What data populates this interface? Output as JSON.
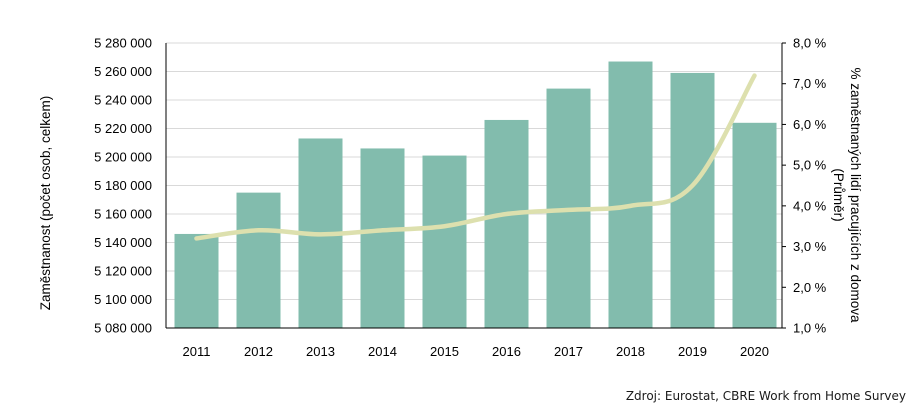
{
  "chart_data": {
    "type": "bar",
    "categories": [
      "2011",
      "2012",
      "2013",
      "2014",
      "2015",
      "2016",
      "2017",
      "2018",
      "2019",
      "2020"
    ],
    "series": [
      {
        "type": "bar",
        "axis": "left",
        "values": [
          5146000,
          5175000,
          5213000,
          5206000,
          5201000,
          5226000,
          5248000,
          5267000,
          5259000,
          5224000
        ],
        "color": "#82bcad"
      },
      {
        "type": "line",
        "axis": "right",
        "values": [
          3.2,
          3.4,
          3.3,
          3.4,
          3.5,
          3.8,
          3.9,
          4.0,
          4.5,
          7.2
        ],
        "color": "#dde0ae"
      }
    ],
    "y_left": {
      "label": "Zaměstnanost (počet osob, celkem)",
      "min": 5080000,
      "max": 5280000,
      "ticks": [
        "5 280 000",
        "5 260 000",
        "5 240 000",
        "5 220 000",
        "5 200 000",
        "5 180 000",
        "5 160 000",
        "5 140 000",
        "5 120 000",
        "5 100 000",
        "5 080 000"
      ]
    },
    "y_right": {
      "label_line1": "% zaměstnaných lidí pracujících  z domova",
      "label_line2": "(Průměr)",
      "min": 1.0,
      "max": 8.0,
      "ticks": [
        "8,0 %",
        "7,0 %",
        "6,0 %",
        "5,0 %",
        "4,0 %",
        "3,0 %",
        "2,0 %",
        "1,0 %"
      ]
    },
    "grid": true,
    "source": "Zdroj: Eurostat, CBRE Work from Home Survey"
  }
}
